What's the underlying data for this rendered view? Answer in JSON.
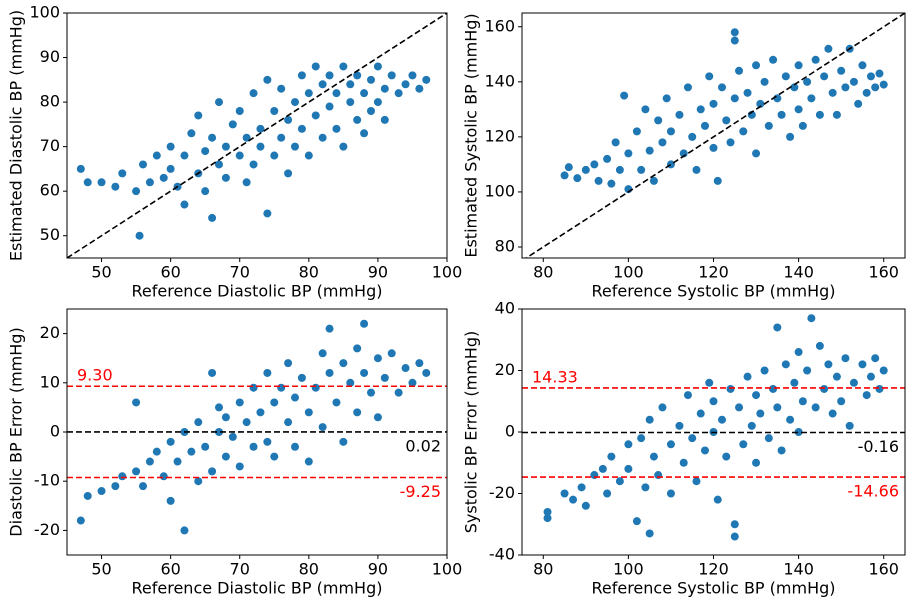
{
  "chart_data": [
    {
      "type": "scatter",
      "xlabel": "Reference Diastolic BP (mmHg)",
      "ylabel": "Estimated Diastolic BP (mmHg)",
      "color": "#1f77b4",
      "xlim": [
        45,
        100
      ],
      "ylim": [
        45,
        100
      ],
      "xticks": [
        50,
        60,
        70,
        80,
        90,
        100
      ],
      "yticks": [
        50,
        60,
        70,
        80,
        90,
        100
      ],
      "identity_line": true,
      "identity_color": "black",
      "x": [
        47,
        48,
        50,
        52,
        53,
        55,
        55.5,
        56,
        57,
        58,
        59,
        60,
        60,
        61,
        62,
        62,
        63,
        64,
        64,
        65,
        65,
        66,
        66,
        67,
        67,
        68,
        68,
        69,
        70,
        70,
        71,
        71,
        72,
        72,
        73,
        73,
        74,
        74,
        75,
        75,
        76,
        76,
        77,
        77,
        78,
        78,
        79,
        79,
        80,
        80,
        81,
        81,
        82,
        82,
        83,
        83,
        84,
        84,
        85,
        85,
        86,
        86,
        87,
        87,
        88,
        88,
        89,
        89,
        90,
        90,
        91,
        91,
        92,
        93,
        94,
        95,
        96,
        97
      ],
      "values": [
        65,
        62,
        62,
        61,
        64,
        60,
        50,
        66,
        62,
        68,
        63,
        65,
        70,
        61,
        57,
        68,
        73,
        64,
        77,
        69,
        60,
        72,
        54,
        66,
        80,
        70,
        63,
        75,
        68,
        78,
        62,
        72,
        82,
        66,
        74,
        70,
        55,
        85,
        68,
        78,
        72,
        83,
        64,
        76,
        80,
        70,
        86,
        74,
        82,
        68,
        77,
        88,
        72,
        84,
        79,
        86,
        74,
        82,
        88,
        70,
        80,
        84,
        76,
        86,
        82,
        73,
        85,
        78,
        88,
        80,
        83,
        76,
        86,
        82,
        84,
        86,
        83,
        85
      ]
    },
    {
      "type": "scatter",
      "xlabel": "Reference Systolic BP (mmHg)",
      "ylabel": "Estimated Systolic BP (mmHg)",
      "color": "#1f77b4",
      "xlim": [
        75,
        165
      ],
      "ylim": [
        76,
        165
      ],
      "xticks": [
        80,
        100,
        120,
        140,
        160
      ],
      "yticks": [
        80,
        100,
        120,
        140,
        160
      ],
      "identity_line": true,
      "identity_color": "black",
      "x": [
        85,
        86,
        88,
        90,
        92,
        93,
        95,
        96,
        97,
        98,
        99,
        100,
        100,
        102,
        103,
        104,
        105,
        106,
        107,
        108,
        109,
        110,
        110,
        112,
        113,
        114,
        115,
        116,
        117,
        118,
        119,
        120,
        120,
        121,
        122,
        123,
        124,
        125,
        125,
        125,
        126,
        127,
        128,
        129,
        130,
        130,
        131,
        132,
        133,
        134,
        135,
        136,
        137,
        138,
        139,
        140,
        140,
        141,
        142,
        143,
        144,
        145,
        146,
        147,
        148,
        149,
        150,
        151,
        152,
        153,
        154,
        155,
        156,
        157,
        158,
        159,
        160
      ],
      "values": [
        106,
        109,
        105,
        108,
        110,
        104,
        112,
        103,
        118,
        108,
        135,
        101,
        114,
        122,
        108,
        130,
        115,
        104,
        126,
        118,
        134,
        110,
        122,
        128,
        114,
        138,
        120,
        108,
        130,
        124,
        142,
        116,
        132,
        104,
        138,
        126,
        118,
        158,
        155,
        134,
        144,
        122,
        136,
        128,
        146,
        114,
        132,
        140,
        124,
        148,
        134,
        128,
        142,
        120,
        138,
        146,
        130,
        124,
        140,
        134,
        148,
        128,
        142,
        152,
        136,
        128,
        144,
        138,
        152,
        140,
        132,
        146,
        136,
        142,
        138,
        143,
        139
      ]
    },
    {
      "type": "scatter",
      "xlabel": "Reference Diastolic BP (mmHg)",
      "ylabel": "Diastolic BP Error (mmHg)",
      "color": "#1f77b4",
      "xlim": [
        45,
        100
      ],
      "ylim": [
        -25,
        25
      ],
      "xticks": [
        50,
        60,
        70,
        80,
        90,
        100
      ],
      "yticks": [
        -20,
        -10,
        0,
        10,
        20
      ],
      "hlines": [
        {
          "value": 9.3,
          "label": "9.30",
          "color": "red"
        },
        {
          "value": 0.02,
          "color": "black"
        },
        {
          "value": -9.25,
          "color": "red"
        }
      ],
      "x": [
        47,
        48,
        50,
        52,
        53,
        55,
        55,
        56,
        57,
        58,
        59,
        60,
        60,
        61,
        62,
        62,
        63,
        64,
        64,
        65,
        66,
        66,
        67,
        67,
        68,
        68,
        69,
        70,
        70,
        71,
        72,
        72,
        73,
        74,
        74,
        75,
        75,
        76,
        77,
        77,
        78,
        78,
        79,
        80,
        80,
        81,
        82,
        82,
        83,
        83,
        84,
        85,
        85,
        86,
        87,
        87,
        88,
        88,
        89,
        90,
        90,
        91,
        92,
        93,
        94,
        95,
        96,
        97
      ],
      "values": [
        -18,
        -13,
        -12,
        -11,
        -9,
        -8,
        6,
        -11,
        -6,
        -4,
        -9,
        -2,
        -14,
        -6,
        -20,
        0,
        -4,
        2,
        -10,
        -3,
        12,
        -8,
        0,
        5,
        -5,
        3,
        -1,
        6,
        -7,
        2,
        9,
        -3,
        4,
        -2,
        12,
        6,
        -5,
        9,
        2,
        14,
        -3,
        7,
        11,
        4,
        -6,
        9,
        16,
        1,
        12,
        21,
        6,
        14,
        -2,
        10,
        17,
        4,
        12,
        22,
        8,
        15,
        3,
        11,
        16,
        8,
        13,
        10,
        14,
        12
      ]
    },
    {
      "type": "scatter",
      "xlabel": "Reference Systolic BP (mmHg)",
      "ylabel": "Systolic BP Error (mmHg)",
      "color": "#1f77b4",
      "xlim": [
        75,
        165
      ],
      "ylim": [
        -40,
        40
      ],
      "xticks": [
        80,
        100,
        120,
        140,
        160
      ],
      "yticks": [
        -40,
        -20,
        0,
        20,
        40
      ],
      "hlines": [
        {
          "value": 14.33,
          "color": "red"
        },
        {
          "value": -0.16,
          "color": "black"
        },
        {
          "value": -14.66,
          "color": "red"
        }
      ],
      "x": [
        81,
        81,
        85,
        87,
        89,
        90,
        92,
        94,
        95,
        96,
        98,
        100,
        100,
        102,
        103,
        104,
        105,
        105,
        106,
        107,
        108,
        110,
        110,
        112,
        113,
        114,
        115,
        116,
        117,
        118,
        119,
        120,
        120,
        121,
        122,
        123,
        124,
        125,
        125,
        126,
        127,
        128,
        129,
        130,
        130,
        131,
        132,
        133,
        134,
        135,
        135,
        136,
        137,
        138,
        139,
        140,
        140,
        141,
        142,
        143,
        144,
        145,
        146,
        147,
        148,
        149,
        150,
        151,
        152,
        153,
        155,
        156,
        157,
        158,
        159,
        160
      ],
      "values": [
        -26,
        -28,
        -20,
        -22,
        -18,
        -24,
        -14,
        -12,
        -20,
        -8,
        -16,
        -4,
        -12,
        -29,
        -2,
        -18,
        -33,
        4,
        -8,
        -14,
        8,
        -4,
        -20,
        2,
        -10,
        12,
        -2,
        -16,
        6,
        -6,
        16,
        0,
        10,
        -22,
        4,
        -8,
        14,
        -30,
        -34,
        8,
        -4,
        18,
        2,
        12,
        -10,
        6,
        20,
        -2,
        14,
        34,
        8,
        -6,
        22,
        4,
        16,
        26,
        0,
        10,
        20,
        37,
        8,
        28,
        14,
        22,
        6,
        18,
        10,
        24,
        2,
        16,
        22,
        12,
        18,
        24,
        14,
        20
      ]
    }
  ]
}
